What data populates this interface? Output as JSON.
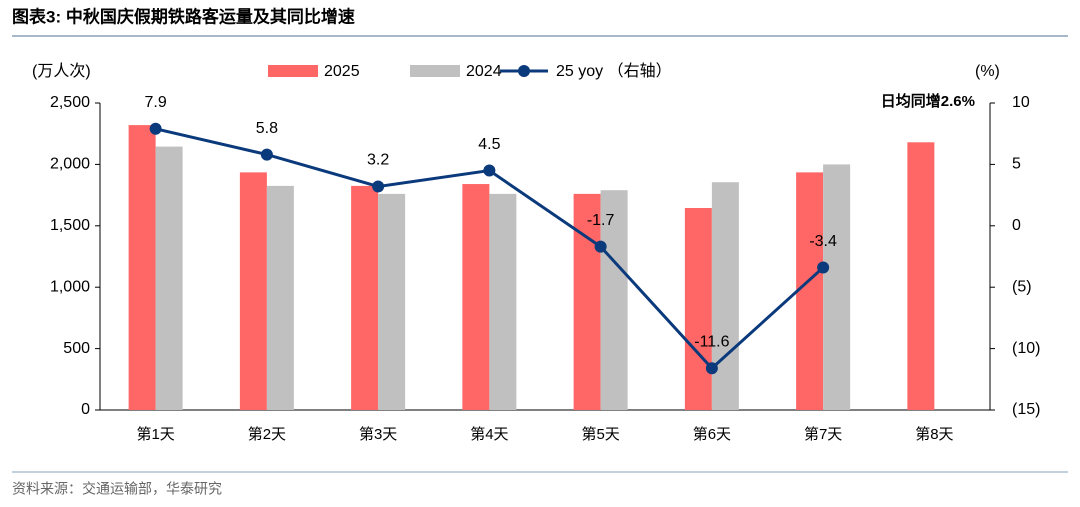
{
  "title": "图表3:  中秋国庆假期铁路客运量及其同比增速",
  "source": "资料来源：交通运输部，华泰研究",
  "chart_data": {
    "type": "bar-line",
    "y_label": "(万人次)",
    "y2_label": "(%)",
    "annotation": "日均同增2.6%",
    "categories": [
      "第1天",
      "第2天",
      "第3天",
      "第4天",
      "第5天",
      "第6天",
      "第7天",
      "第8天"
    ],
    "series": [
      {
        "name": "2025",
        "color": "#ff6666",
        "type": "bar",
        "values": [
          2320,
          1935,
          1825,
          1840,
          1760,
          1645,
          1935,
          2180
        ]
      },
      {
        "name": "2024",
        "color": "#c0c0c0",
        "type": "bar",
        "values": [
          2145,
          1825,
          1760,
          1760,
          1790,
          1855,
          2000,
          null
        ]
      },
      {
        "name": "25 yoy （右轴）",
        "color": "#0b3a7c",
        "type": "line",
        "axis": "y2",
        "values": [
          7.9,
          5.8,
          3.2,
          4.5,
          -1.7,
          -11.6,
          -3.4,
          null
        ]
      }
    ],
    "ylim": [
      0,
      2500
    ],
    "yticks": [
      0,
      500,
      {
        "value": 1000,
        "label": "1,000"
      },
      {
        "value": 1500,
        "label": "1,500"
      },
      {
        "value": 2000,
        "label": "2,000"
      },
      {
        "value": 2500,
        "label": "2,500"
      }
    ],
    "y2lim": [
      -15,
      10
    ],
    "y2ticks": [
      {
        "value": -15,
        "label": "(15)"
      },
      {
        "value": -10,
        "label": "(10)"
      },
      {
        "value": -5,
        "label": "(5)"
      },
      0,
      5,
      10
    ],
    "grid": false
  }
}
